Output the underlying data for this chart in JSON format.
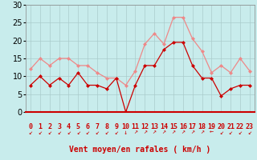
{
  "x": [
    0,
    1,
    2,
    3,
    4,
    5,
    6,
    7,
    8,
    9,
    10,
    11,
    12,
    13,
    14,
    15,
    16,
    17,
    18,
    19,
    20,
    21,
    22,
    23
  ],
  "vent_moyen": [
    7.5,
    10,
    7.5,
    9.5,
    7.5,
    11,
    7.5,
    7.5,
    6.5,
    9.5,
    0,
    7.5,
    13,
    13,
    17.5,
    19.5,
    19.5,
    13,
    9.5,
    9.5,
    4.5,
    6.5,
    7.5,
    7.5
  ],
  "rafales": [
    12,
    15,
    13,
    15,
    15,
    13,
    13,
    11,
    9.5,
    9.5,
    7.5,
    11.5,
    19,
    22,
    19,
    26.5,
    26.5,
    20.5,
    17,
    11,
    13,
    11,
    15,
    11.5
  ],
  "color_moyen": "#cc0000",
  "color_rafales": "#ee8888",
  "bg_color": "#c8ecec",
  "grid_color": "#aacccc",
  "xlabel": "Vent moyen/en rafales ( km/h )",
  "ylabel_ticks": [
    0,
    5,
    10,
    15,
    20,
    25,
    30
  ],
  "xlim": [
    -0.5,
    23.5
  ],
  "ylim": [
    0,
    30
  ],
  "xlabel_fontsize": 7,
  "tick_fontsize": 6,
  "marker_size": 2.5,
  "wind_arrows": [
    "↙",
    "↙",
    "↙",
    "↙",
    "↙",
    "↙",
    "↙",
    "↙",
    "↙",
    "↙",
    "↓",
    "↗",
    "↗",
    "↗",
    "↗",
    "↗",
    "↗",
    "↗",
    "↗",
    "←",
    "↙",
    "↙",
    "↙",
    "↙"
  ]
}
